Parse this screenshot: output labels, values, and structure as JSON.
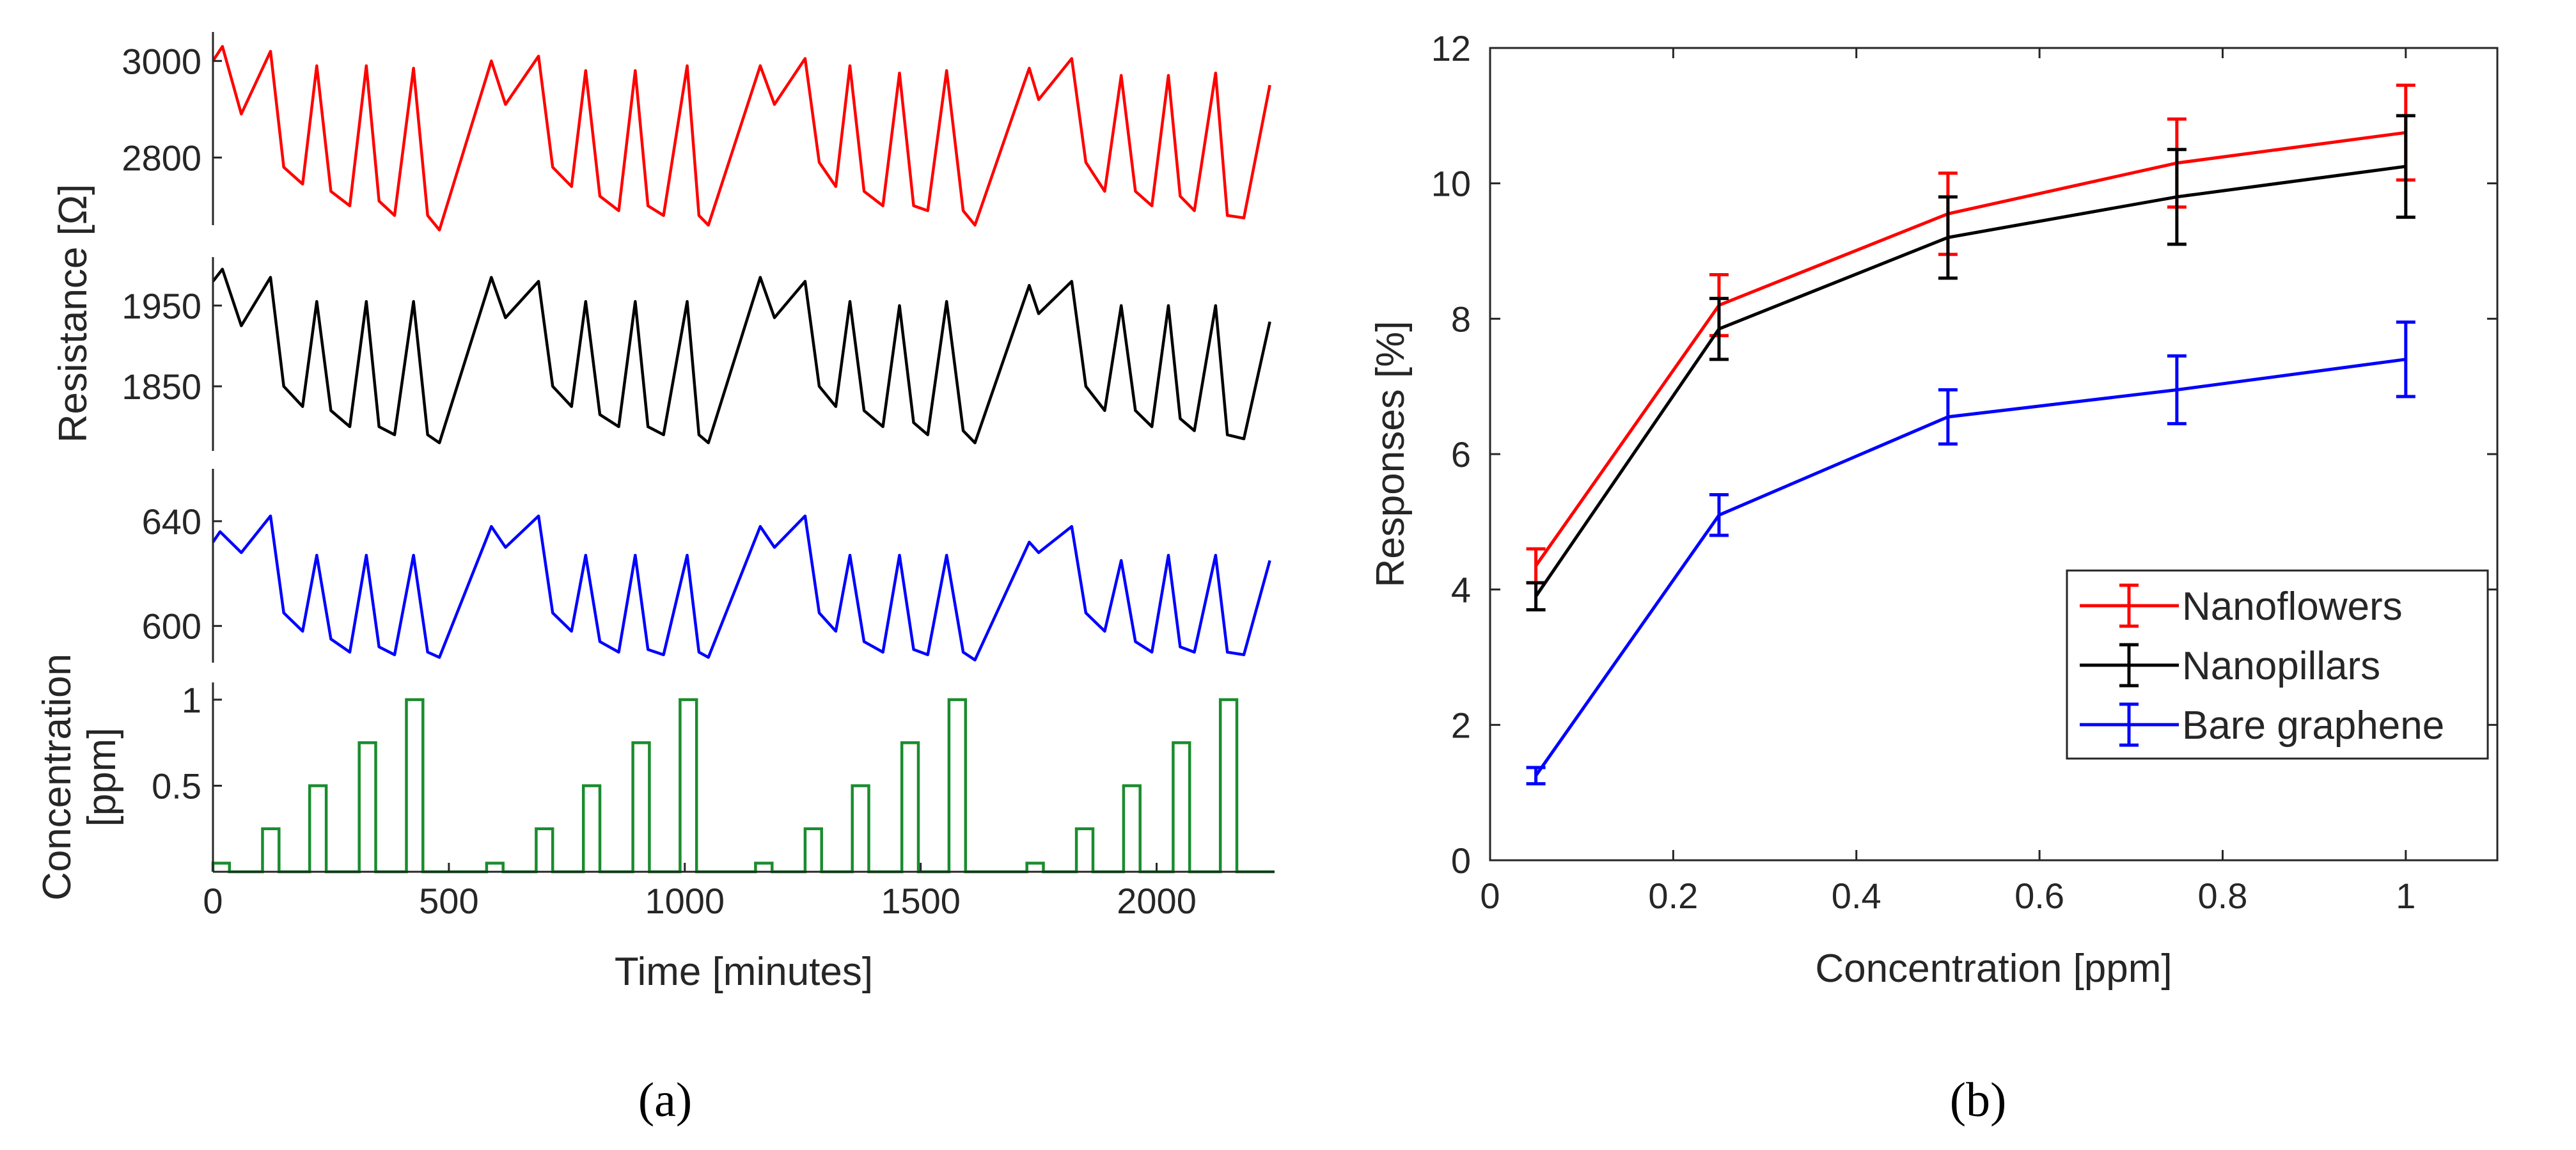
{
  "chart_data": [
    {
      "id": "a",
      "panel_label": "(a)",
      "type": "line",
      "xlabel": "Time [minutes]",
      "x_ticks": [
        0,
        500,
        1000,
        1500,
        2000
      ],
      "xlim": [
        0,
        2250
      ],
      "shared_ylabel": "Resistance [Ω]",
      "resistance_panels": [
        {
          "name": "Nanoflowers",
          "color": "#ff0000",
          "ylim": [
            2660,
            3060
          ],
          "y_ticks": [
            2800,
            3000
          ],
          "points": [
            [
              0,
              3000
            ],
            [
              20,
              3030
            ],
            [
              60,
              2890
            ],
            [
              122,
              3020
            ],
            [
              150,
              2780
            ],
            [
              190,
              2745
            ],
            [
              220,
              2990
            ],
            [
              250,
              2730
            ],
            [
              290,
              2700
            ],
            [
              325,
              2990
            ],
            [
              352,
              2710
            ],
            [
              385,
              2680
            ],
            [
              425,
              2985
            ],
            [
              455,
              2680
            ],
            [
              480,
              2650
            ],
            [
              590,
              3000
            ],
            [
              620,
              2910
            ],
            [
              690,
              3010
            ],
            [
              720,
              2780
            ],
            [
              760,
              2740
            ],
            [
              790,
              2980
            ],
            [
              820,
              2720
            ],
            [
              860,
              2690
            ],
            [
              895,
              2980
            ],
            [
              922,
              2700
            ],
            [
              955,
              2680
            ],
            [
              1005,
              2990
            ],
            [
              1030,
              2680
            ],
            [
              1050,
              2660
            ],
            [
              1160,
              2990
            ],
            [
              1190,
              2910
            ],
            [
              1255,
              3005
            ],
            [
              1285,
              2790
            ],
            [
              1320,
              2740
            ],
            [
              1350,
              2990
            ],
            [
              1380,
              2730
            ],
            [
              1420,
              2700
            ],
            [
              1455,
              2975
            ],
            [
              1485,
              2700
            ],
            [
              1515,
              2690
            ],
            [
              1555,
              2980
            ],
            [
              1590,
              2690
            ],
            [
              1615,
              2660
            ],
            [
              1730,
              2985
            ],
            [
              1750,
              2920
            ],
            [
              1820,
              3005
            ],
            [
              1850,
              2790
            ],
            [
              1890,
              2730
            ],
            [
              1925,
              2970
            ],
            [
              1955,
              2730
            ],
            [
              1990,
              2700
            ],
            [
              2025,
              2970
            ],
            [
              2050,
              2720
            ],
            [
              2080,
              2690
            ],
            [
              2125,
              2975
            ],
            [
              2150,
              2680
            ],
            [
              2185,
              2675
            ],
            [
              2240,
              2950
            ]
          ]
        },
        {
          "name": "Nanopillars",
          "color": "#000000",
          "ylim": [
            1770,
            2010
          ],
          "y_ticks": [
            1850,
            1950
          ],
          "points": [
            [
              0,
              1980
            ],
            [
              20,
              1995
            ],
            [
              60,
              1925
            ],
            [
              122,
              1985
            ],
            [
              150,
              1850
            ],
            [
              190,
              1825
            ],
            [
              220,
              1955
            ],
            [
              250,
              1820
            ],
            [
              290,
              1800
            ],
            [
              325,
              1955
            ],
            [
              352,
              1800
            ],
            [
              385,
              1790
            ],
            [
              425,
              1955
            ],
            [
              455,
              1790
            ],
            [
              480,
              1780
            ],
            [
              590,
              1985
            ],
            [
              620,
              1935
            ],
            [
              690,
              1980
            ],
            [
              720,
              1850
            ],
            [
              760,
              1825
            ],
            [
              790,
              1955
            ],
            [
              820,
              1815
            ],
            [
              860,
              1800
            ],
            [
              895,
              1955
            ],
            [
              922,
              1800
            ],
            [
              955,
              1790
            ],
            [
              1005,
              1955
            ],
            [
              1030,
              1790
            ],
            [
              1050,
              1780
            ],
            [
              1160,
              1985
            ],
            [
              1190,
              1935
            ],
            [
              1255,
              1980
            ],
            [
              1285,
              1850
            ],
            [
              1320,
              1825
            ],
            [
              1350,
              1955
            ],
            [
              1380,
              1820
            ],
            [
              1420,
              1800
            ],
            [
              1455,
              1950
            ],
            [
              1485,
              1805
            ],
            [
              1515,
              1790
            ],
            [
              1555,
              1955
            ],
            [
              1590,
              1795
            ],
            [
              1615,
              1780
            ],
            [
              1730,
              1975
            ],
            [
              1750,
              1940
            ],
            [
              1820,
              1980
            ],
            [
              1850,
              1850
            ],
            [
              1890,
              1820
            ],
            [
              1925,
              1950
            ],
            [
              1955,
              1820
            ],
            [
              1990,
              1800
            ],
            [
              2025,
              1950
            ],
            [
              2050,
              1810
            ],
            [
              2080,
              1795
            ],
            [
              2125,
              1950
            ],
            [
              2150,
              1790
            ],
            [
              2185,
              1785
            ],
            [
              2240,
              1930
            ]
          ]
        },
        {
          "name": "Bare graphene",
          "color": "#0000ff",
          "ylim": [
            586,
            660
          ],
          "y_ticks": [
            600,
            640
          ],
          "points": [
            [
              0,
              632
            ],
            [
              15,
              636
            ],
            [
              60,
              628
            ],
            [
              122,
              642
            ],
            [
              150,
              605
            ],
            [
              190,
              598
            ],
            [
              220,
              627
            ],
            [
              250,
              595
            ],
            [
              290,
              590
            ],
            [
              325,
              627
            ],
            [
              352,
              592
            ],
            [
              385,
              589
            ],
            [
              425,
              627
            ],
            [
              455,
              590
            ],
            [
              480,
              588
            ],
            [
              590,
              638
            ],
            [
              620,
              630
            ],
            [
              690,
              642
            ],
            [
              720,
              605
            ],
            [
              760,
              598
            ],
            [
              790,
              627
            ],
            [
              820,
              594
            ],
            [
              860,
              590
            ],
            [
              895,
              627
            ],
            [
              922,
              591
            ],
            [
              955,
              589
            ],
            [
              1005,
              627
            ],
            [
              1030,
              590
            ],
            [
              1050,
              588
            ],
            [
              1160,
              638
            ],
            [
              1190,
              630
            ],
            [
              1255,
              642
            ],
            [
              1285,
              605
            ],
            [
              1320,
              598
            ],
            [
              1350,
              627
            ],
            [
              1380,
              594
            ],
            [
              1420,
              590
            ],
            [
              1455,
              627
            ],
            [
              1485,
              591
            ],
            [
              1515,
              589
            ],
            [
              1555,
              627
            ],
            [
              1590,
              590
            ],
            [
              1615,
              587
            ],
            [
              1730,
              632
            ],
            [
              1750,
              628
            ],
            [
              1820,
              638
            ],
            [
              1850,
              605
            ],
            [
              1890,
              598
            ],
            [
              1925,
              625
            ],
            [
              1955,
              594
            ],
            [
              1990,
              590
            ],
            [
              2025,
              627
            ],
            [
              2050,
              592
            ],
            [
              2080,
              590
            ],
            [
              2125,
              627
            ],
            [
              2150,
              590
            ],
            [
              2185,
              589
            ],
            [
              2240,
              625
            ]
          ]
        }
      ],
      "concentration_panel": {
        "ylabel": "Concentration\n[ppm]",
        "color": "#1a8c2e",
        "ylim": [
          0,
          1.1
        ],
        "y_ticks": [
          0.5,
          1
        ],
        "y_tick_labels": [
          "0.5",
          "1"
        ],
        "cycle_starts": [
          0,
          580,
          1150,
          1725
        ],
        "pulses": [
          {
            "offset": 0,
            "width": 35,
            "level": 0.05
          },
          {
            "offset": 105,
            "width": 35,
            "level": 0.25
          },
          {
            "offset": 205,
            "width": 35,
            "level": 0.5
          },
          {
            "offset": 310,
            "width": 35,
            "level": 0.75
          },
          {
            "offset": 410,
            "width": 35,
            "level": 1.0
          }
        ]
      }
    },
    {
      "id": "b",
      "panel_label": "(b)",
      "type": "line",
      "xlabel": "Concentration [ppm]",
      "ylabel": "Responses [%]",
      "xlim": [
        0,
        1.1
      ],
      "ylim": [
        0,
        12
      ],
      "x_ticks": [
        0,
        0.2,
        0.4,
        0.6,
        0.8,
        1
      ],
      "x_tick_labels": [
        "0",
        "0.2",
        "0.4",
        "0.6",
        "0.8",
        "1"
      ],
      "y_ticks": [
        0,
        2,
        4,
        6,
        8,
        10,
        12
      ],
      "x": [
        0.05,
        0.25,
        0.5,
        0.75,
        1.0
      ],
      "legend_position": "lower-right",
      "series": [
        {
          "name": "Nanoflowers",
          "color": "#ff0000",
          "values": [
            4.35,
            8.2,
            9.55,
            10.3,
            10.75
          ],
          "errors": [
            0.25,
            0.45,
            0.6,
            0.65,
            0.7
          ]
        },
        {
          "name": "Nanopillars",
          "color": "#000000",
          "values": [
            3.9,
            7.85,
            9.2,
            9.8,
            10.25
          ],
          "errors": [
            0.2,
            0.45,
            0.6,
            0.7,
            0.75
          ]
        },
        {
          "name": "Bare graphene",
          "color": "#0000ff",
          "values": [
            1.25,
            5.1,
            6.55,
            6.95,
            7.4
          ],
          "errors": [
            0.12,
            0.3,
            0.4,
            0.5,
            0.55
          ]
        }
      ]
    }
  ]
}
